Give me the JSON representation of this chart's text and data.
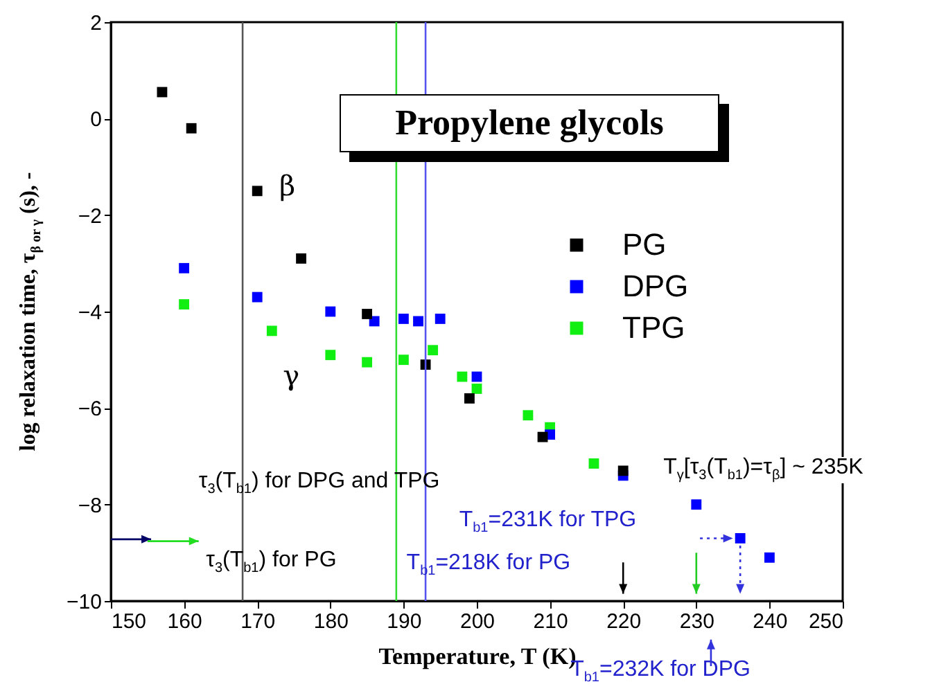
{
  "chart_data": {
    "type": "scatter",
    "title": "Propylene glycols",
    "xlabel": "Temperature, T (K)",
    "ylabel": "log relaxation time, τ$_{β or γ}$ (s), -",
    "series": [
      {
        "name": "PG",
        "color": "#000000",
        "x": [
          157,
          161,
          170,
          176,
          185,
          193,
          199,
          209,
          220
        ],
        "values": [
          0.55,
          -0.2,
          -1.5,
          -2.9,
          -4.05,
          -5.1,
          -5.8,
          -6.6,
          -7.3
        ]
      },
      {
        "name": "DPG",
        "color": "#0000ff",
        "x": [
          160,
          170,
          180,
          186,
          190,
          192,
          195,
          200,
          210,
          220,
          230,
          236,
          240
        ],
        "values": [
          -3.1,
          -3.7,
          -4.0,
          -4.2,
          -4.15,
          -4.2,
          -4.15,
          -5.35,
          -6.55,
          -7.4,
          -8.0,
          -8.7,
          -9.1
        ]
      },
      {
        "name": "TPG",
        "color": "#11ee11",
        "x": [
          160,
          172,
          180,
          185,
          190,
          194,
          198,
          200,
          207,
          210,
          216
        ],
        "values": [
          -3.85,
          -4.4,
          -4.9,
          -5.05,
          -5.0,
          -4.8,
          -5.35,
          -5.6,
          -6.15,
          -6.4,
          -7.15
        ]
      }
    ],
    "xlim": [
      150,
      250
    ],
    "xticks": [
      150,
      160,
      170,
      180,
      190,
      200,
      210,
      220,
      230,
      240,
      250
    ],
    "ylim": [
      -10,
      2
    ],
    "yticks": [
      -10,
      -8,
      -6,
      -4,
      -2,
      0,
      2
    ],
    "ref_lines": [
      {
        "axis": "x",
        "value": 168,
        "color": "#555555"
      },
      {
        "axis": "x",
        "value": 189,
        "color": "#33dd33"
      },
      {
        "axis": "x",
        "value": 193,
        "color": "#5555ee"
      }
    ],
    "annotations": [
      "β",
      "γ",
      "τ$_{3}$(T$_{b1}$) for DPG and TPG",
      "τ$_{3}$(T$_{b1}$) for PG",
      "T$_{b1}$=218K for PG",
      "T$_{b1}$=231K for TPG",
      "T$_{γ}$[τ$_{3}$(T$_{b1}$)=τ$_{β}$] ~ 235K",
      "T$_{b1}$=232K for DPG"
    ],
    "legend": "right",
    "marker": "square",
    "grid": false
  }
}
